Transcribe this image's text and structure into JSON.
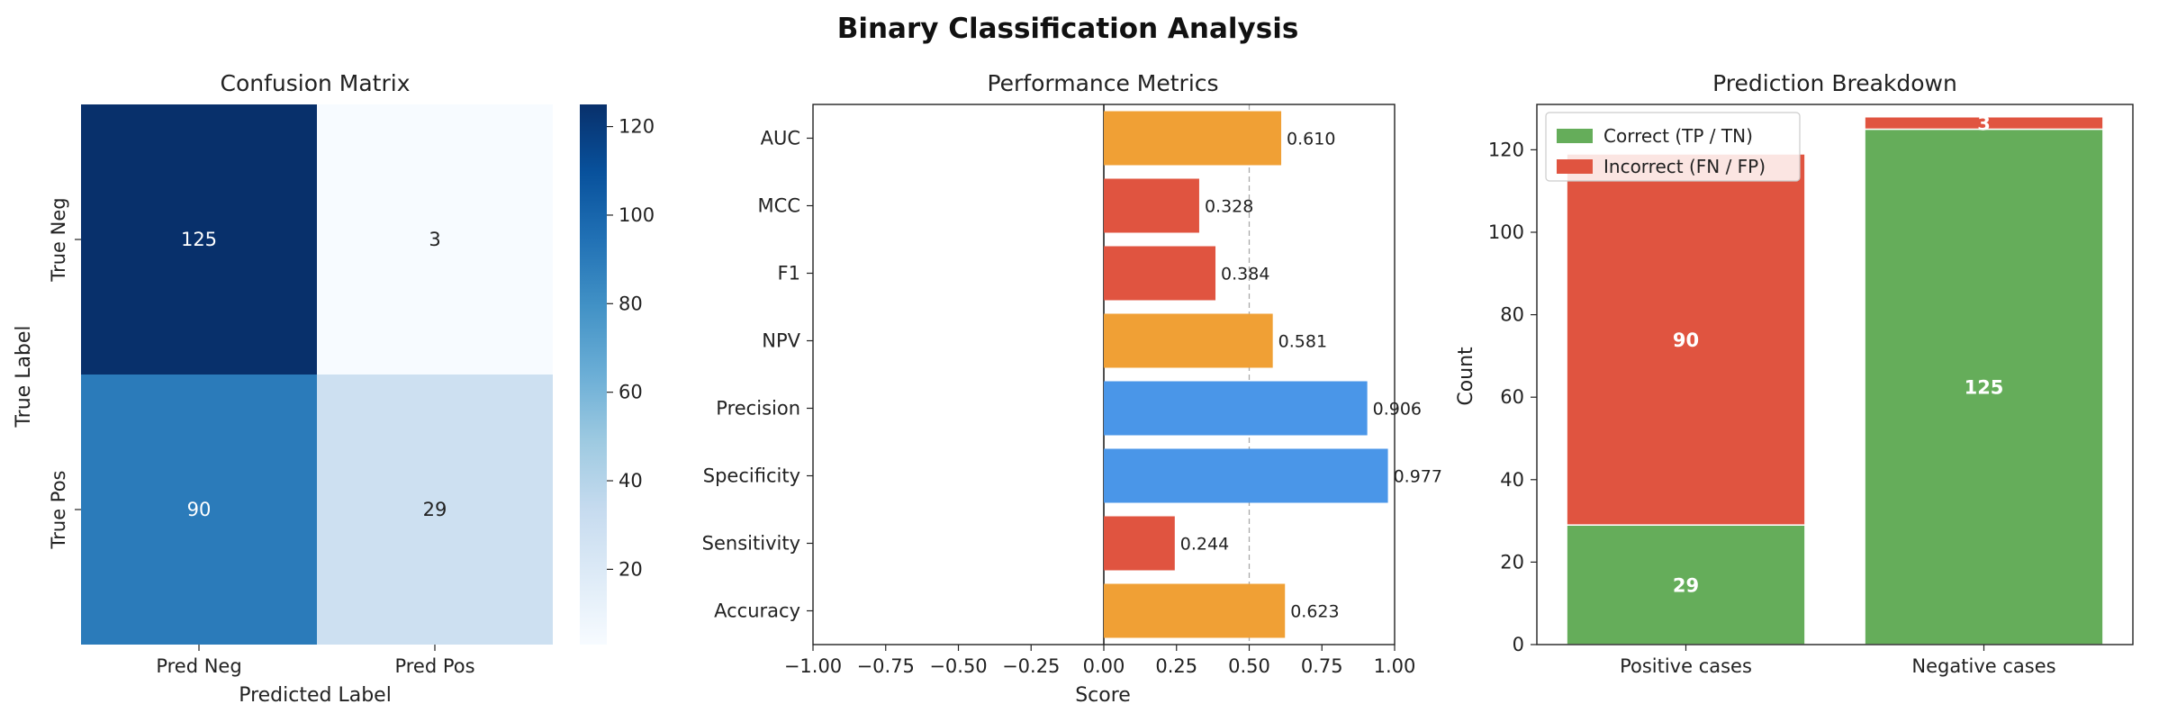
{
  "figure": {
    "title": "Binary Classification Analysis"
  },
  "chart_data": [
    {
      "type": "heatmap",
      "title": "Confusion Matrix",
      "xlabel": "Predicted Label",
      "ylabel": "True Label",
      "x_categories": [
        "Pred Neg",
        "Pred Pos"
      ],
      "y_categories": [
        "True Neg",
        "True Pos"
      ],
      "values": [
        [
          125,
          3
        ],
        [
          90,
          29
        ]
      ],
      "colormap": "Blues",
      "colorbar": {
        "range": [
          3,
          125
        ],
        "ticks": [
          20,
          40,
          60,
          80,
          100,
          120
        ]
      },
      "colors": {
        "low": "#f7fbff",
        "high": "#08306b"
      }
    },
    {
      "type": "bar",
      "orientation": "horizontal",
      "title": "Performance Metrics",
      "xlabel": "Score",
      "ylabel": "",
      "categories": [
        "Accuracy",
        "Sensitivity",
        "Specificity",
        "Precision",
        "NPV",
        "F1",
        "MCC",
        "AUC"
      ],
      "values": [
        0.623,
        0.244,
        0.977,
        0.906,
        0.581,
        0.384,
        0.328,
        0.61
      ],
      "value_labels": [
        "0.623",
        "0.244",
        "0.977",
        "0.906",
        "0.581",
        "0.384",
        "0.328",
        "0.610"
      ],
      "bar_colors": [
        "#f0a035",
        "#e05440",
        "#4a96e8",
        "#4a96e8",
        "#f0a035",
        "#e05440",
        "#e05440",
        "#f0a035"
      ],
      "xlim": [
        -1.0,
        1.0
      ],
      "xticks": [
        -1.0,
        -0.75,
        -0.5,
        -0.25,
        0.0,
        0.25,
        0.5,
        0.75,
        1.0
      ],
      "xtick_labels": [
        "−1.00",
        "−0.75",
        "−0.50",
        "−0.25",
        "0.00",
        "0.25",
        "0.50",
        "0.75",
        "1.00"
      ],
      "reference_lines": [
        0.0,
        0.5
      ],
      "grid": false
    },
    {
      "type": "bar",
      "stacked": true,
      "title": "Prediction Breakdown",
      "xlabel": "",
      "ylabel": "Count",
      "categories": [
        "Positive cases",
        "Negative cases"
      ],
      "series": [
        {
          "name": "Correct (TP / TN)",
          "values": [
            29,
            125
          ],
          "labels": [
            "29",
            "125"
          ],
          "color": "#65ad5a"
        },
        {
          "name": "Incorrect (FN / FP)",
          "values": [
            90,
            3
          ],
          "labels": [
            "90",
            "3"
          ],
          "color": "#e05440"
        }
      ],
      "ylim": [
        0,
        131
      ],
      "yticks": [
        0,
        20,
        40,
        60,
        80,
        100,
        120
      ],
      "legend": "upper-left",
      "grid": false
    }
  ]
}
